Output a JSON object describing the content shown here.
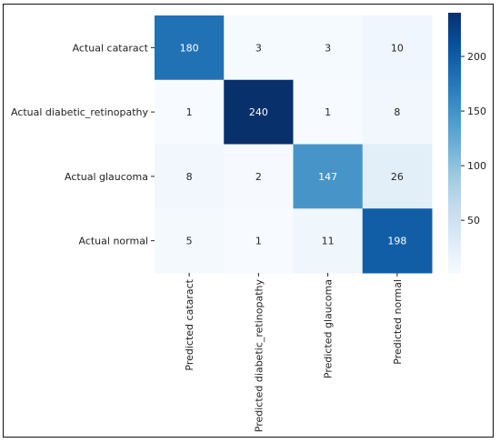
{
  "chart_data": {
    "type": "heatmap",
    "title": "",
    "xlabel": "",
    "ylabel": "",
    "rows": [
      "Actual cataract",
      "Actual diabetic_retinopathy",
      "Actual glaucoma",
      "Actual normal"
    ],
    "columns": [
      "Predicted cataract",
      "Predicted diabetic_retinopathy",
      "Predicted glaucoma",
      "Predicted normal"
    ],
    "values": [
      [
        180,
        3,
        3,
        10
      ],
      [
        1,
        240,
        1,
        8
      ],
      [
        8,
        2,
        147,
        26
      ],
      [
        5,
        1,
        11,
        198
      ]
    ],
    "colormap": "Blues",
    "colorbar": {
      "min": 1,
      "max": 240,
      "ticks": [
        50,
        100,
        150,
        200
      ],
      "low_color": "#f7fbff",
      "high_color": "#08306b"
    },
    "legend": "none",
    "grid": false
  }
}
